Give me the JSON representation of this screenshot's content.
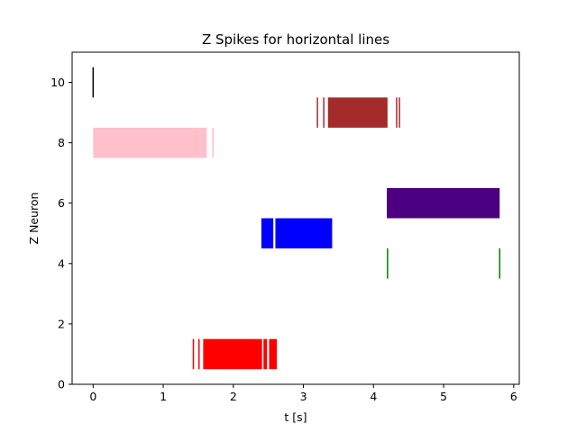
{
  "chart_data": {
    "type": "eventplot",
    "title": "Z Spikes for horizontal lines",
    "xlabel": "t [s]",
    "ylabel": "Z Neuron",
    "xlim": [
      -0.3,
      6.08
    ],
    "ylim": [
      0,
      11
    ],
    "xticks": [
      0,
      1,
      2,
      3,
      4,
      5,
      6
    ],
    "yticks": [
      0,
      2,
      4,
      6,
      8,
      10
    ],
    "grid": false,
    "series": [
      {
        "y": 1,
        "color": "#ff0000",
        "line_length": 1,
        "line_width": 1.5,
        "spikes": [
          1.43,
          1.51
        ],
        "blocks": [
          [
            1.57,
            2.41
          ],
          [
            2.43,
            2.48
          ],
          [
            2.51,
            2.62
          ]
        ]
      },
      {
        "y": 4,
        "color": "#008000",
        "line_length": 1,
        "line_width": 1.5,
        "spikes": [
          4.2,
          5.8
        ],
        "blocks": []
      },
      {
        "y": 5,
        "color": "#0000ff",
        "line_length": 1,
        "line_width": 1.5,
        "spikes": [],
        "blocks": [
          [
            2.4,
            2.57
          ],
          [
            2.6,
            3.41
          ]
        ]
      },
      {
        "y": 6,
        "color": "#4b0082",
        "line_length": 1,
        "line_width": 1.5,
        "spikes": [],
        "blocks": [
          [
            4.19,
            5.8
          ]
        ]
      },
      {
        "y": 8,
        "color": "#ffc0cb",
        "line_length": 1,
        "line_width": 1.5,
        "spikes": [
          1.71
        ],
        "blocks": [
          [
            0.0,
            1.62
          ]
        ]
      },
      {
        "y": 9,
        "color": "#a52a2a",
        "line_length": 1,
        "line_width": 1.5,
        "spikes": [
          3.2,
          3.29,
          4.33,
          4.37
        ],
        "blocks": [
          [
            3.35,
            4.2
          ]
        ]
      },
      {
        "y": 10,
        "color": "#000000",
        "line_length": 1,
        "line_width": 1.5,
        "spikes": [
          0.0
        ],
        "blocks": []
      }
    ]
  }
}
